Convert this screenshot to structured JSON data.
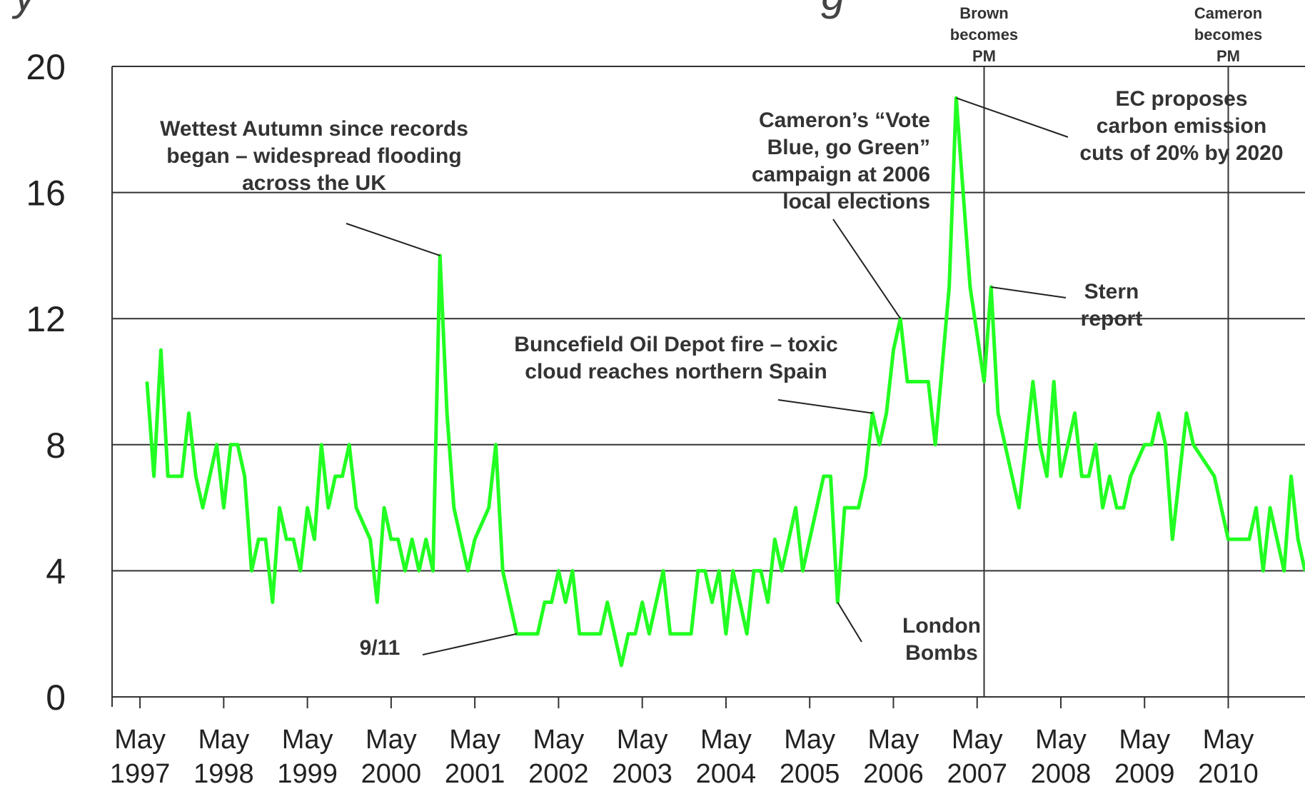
{
  "chart_data": {
    "type": "line",
    "title_fragment": "y                                                                  g",
    "ylim": [
      0,
      20
    ],
    "yticks": [
      "0",
      "4",
      "8",
      "12",
      "16",
      "20"
    ],
    "grid": "horizontal",
    "x_tick_labels": [
      {
        "month": "May",
        "year": "1997"
      },
      {
        "month": "May",
        "year": "1998"
      },
      {
        "month": "May",
        "year": "1999"
      },
      {
        "month": "May",
        "year": "2000"
      },
      {
        "month": "May",
        "year": "2001"
      },
      {
        "month": "May",
        "year": "2002"
      },
      {
        "month": "May",
        "year": "2003"
      },
      {
        "month": "May",
        "year": "2004"
      },
      {
        "month": "May",
        "year": "2005"
      },
      {
        "month": "May",
        "year": "2006"
      },
      {
        "month": "May",
        "year": "2007"
      },
      {
        "month": "May",
        "year": "2008"
      },
      {
        "month": "May",
        "year": "2009"
      },
      {
        "month": "May",
        "year": "2010"
      }
    ],
    "series": [
      {
        "color": "#22ff22",
        "points": [
          [
            "1997-06",
            10
          ],
          [
            "1997-07",
            7
          ],
          [
            "1997-08",
            11
          ],
          [
            "1997-09",
            7
          ],
          [
            "1997-10",
            7
          ],
          [
            "1997-11",
            7
          ],
          [
            "1997-12",
            9
          ],
          [
            "1998-01",
            7
          ],
          [
            "1998-02",
            6
          ],
          [
            "1998-03",
            7
          ],
          [
            "1998-04",
            8
          ],
          [
            "1998-05",
            6
          ],
          [
            "1998-06",
            8
          ],
          [
            "1998-07",
            8
          ],
          [
            "1998-08",
            7
          ],
          [
            "1998-09",
            4
          ],
          [
            "1998-10",
            5
          ],
          [
            "1998-11",
            5
          ],
          [
            "1998-12",
            3
          ],
          [
            "1999-01",
            6
          ],
          [
            "1999-02",
            5
          ],
          [
            "1999-03",
            5
          ],
          [
            "1999-04",
            4
          ],
          [
            "1999-05",
            6
          ],
          [
            "1999-06",
            5
          ],
          [
            "1999-07",
            8
          ],
          [
            "1999-08",
            6
          ],
          [
            "1999-09",
            7
          ],
          [
            "1999-10",
            7
          ],
          [
            "1999-11",
            8
          ],
          [
            "1999-12",
            6
          ],
          [
            "2000-02",
            5
          ],
          [
            "2000-03",
            3
          ],
          [
            "2000-04",
            6
          ],
          [
            "2000-05",
            5
          ],
          [
            "2000-06",
            5
          ],
          [
            "2000-07",
            4
          ],
          [
            "2000-08",
            5
          ],
          [
            "2000-09",
            4
          ],
          [
            "2000-10",
            5
          ],
          [
            "2000-11",
            4
          ],
          [
            "2000-12",
            14
          ],
          [
            "2001-01",
            9
          ],
          [
            "2001-02",
            6
          ],
          [
            "2001-03",
            5
          ],
          [
            "2001-04",
            4
          ],
          [
            "2001-05",
            5
          ],
          [
            "2001-07",
            6
          ],
          [
            "2001-08",
            8
          ],
          [
            "2001-09",
            4
          ],
          [
            "2001-10",
            3
          ],
          [
            "2001-11",
            2
          ],
          [
            "2002-02",
            2
          ],
          [
            "2002-03",
            3
          ],
          [
            "2002-04",
            3
          ],
          [
            "2002-05",
            4
          ],
          [
            "2002-06",
            3
          ],
          [
            "2002-07",
            4
          ],
          [
            "2002-08",
            2
          ],
          [
            "2002-11",
            2
          ],
          [
            "2002-12",
            3
          ],
          [
            "2003-01",
            2
          ],
          [
            "2003-02",
            1
          ],
          [
            "2003-03",
            2
          ],
          [
            "2003-04",
            2
          ],
          [
            "2003-05",
            3
          ],
          [
            "2003-06",
            2
          ],
          [
            "2003-07",
            3
          ],
          [
            "2003-08",
            4
          ],
          [
            "2003-09",
            2
          ],
          [
            "2003-12",
            2
          ],
          [
            "2004-01",
            4
          ],
          [
            "2004-02",
            4
          ],
          [
            "2004-03",
            3
          ],
          [
            "2004-04",
            4
          ],
          [
            "2004-05",
            2
          ],
          [
            "2004-06",
            4
          ],
          [
            "2004-07",
            3
          ],
          [
            "2004-08",
            2
          ],
          [
            "2004-09",
            4
          ],
          [
            "2004-10",
            4
          ],
          [
            "2004-11",
            3
          ],
          [
            "2004-12",
            5
          ],
          [
            "2005-01",
            4
          ],
          [
            "2005-02",
            5
          ],
          [
            "2005-03",
            6
          ],
          [
            "2005-04",
            4
          ],
          [
            "2005-05",
            5
          ],
          [
            "2005-06",
            6
          ],
          [
            "2005-07",
            7
          ],
          [
            "2005-08",
            7
          ],
          [
            "2005-09",
            3
          ],
          [
            "2005-10",
            6
          ],
          [
            "2005-11",
            6
          ],
          [
            "2005-12",
            6
          ],
          [
            "2006-01",
            7
          ],
          [
            "2006-02",
            9
          ],
          [
            "2006-03",
            8
          ],
          [
            "2006-04",
            9
          ],
          [
            "2006-05",
            11
          ],
          [
            "2006-06",
            12
          ],
          [
            "2006-07",
            10
          ],
          [
            "2006-10",
            10
          ],
          [
            "2006-11",
            8
          ],
          [
            "2007-01",
            13
          ],
          [
            "2007-02",
            19
          ],
          [
            "2007-04",
            13
          ],
          [
            "2007-06",
            10
          ],
          [
            "2007-07",
            13
          ],
          [
            "2007-08",
            9
          ],
          [
            "2007-09",
            8
          ],
          [
            "2007-10",
            7
          ],
          [
            "2007-11",
            6
          ],
          [
            "2007-12",
            8
          ],
          [
            "2008-01",
            10
          ],
          [
            "2008-02",
            8
          ],
          [
            "2008-03",
            7
          ],
          [
            "2008-04",
            10
          ],
          [
            "2008-05",
            7
          ],
          [
            "2008-06",
            8
          ],
          [
            "2008-07",
            9
          ],
          [
            "2008-08",
            7
          ],
          [
            "2008-09",
            7
          ],
          [
            "2008-10",
            8
          ],
          [
            "2008-11",
            6
          ],
          [
            "2008-12",
            7
          ],
          [
            "2009-01",
            6
          ],
          [
            "2009-02",
            6
          ],
          [
            "2009-03",
            7
          ],
          [
            "2009-05",
            8
          ],
          [
            "2009-06",
            8
          ],
          [
            "2009-07",
            9
          ],
          [
            "2009-08",
            8
          ],
          [
            "2009-09",
            5
          ],
          [
            "2009-11",
            9
          ],
          [
            "2009-12",
            8
          ],
          [
            "2010-03",
            7
          ],
          [
            "2010-04",
            6
          ],
          [
            "2010-05",
            5
          ],
          [
            "2010-08",
            5
          ],
          [
            "2010-09",
            6
          ],
          [
            "2010-10",
            4
          ],
          [
            "2010-11",
            6
          ],
          [
            "2010-12",
            5
          ],
          [
            "2011-01",
            4
          ],
          [
            "2011-02",
            7
          ],
          [
            "2011-03",
            5
          ],
          [
            "2011-04",
            4
          ]
        ]
      }
    ],
    "events": [
      {
        "date": "2007-06",
        "lines": [
          "Brown",
          "becomes",
          "PM"
        ]
      },
      {
        "date": "2010-05",
        "lines": [
          "Cameron",
          "becomes",
          "PM"
        ]
      }
    ],
    "annotations": [
      {
        "lines": [
          "Wettest Autumn since records",
          "began – widespread flooding",
          "across the UK"
        ],
        "point": [
          "2000-12",
          14
        ]
      },
      {
        "lines": [
          "9/11"
        ],
        "point": [
          "2001-11",
          2
        ]
      },
      {
        "lines": [
          "Buncefield Oil Depot fire – toxic",
          "cloud reaches northern Spain"
        ],
        "point": [
          "2006-02",
          9
        ]
      },
      {
        "lines": [
          "Cameron’s “Vote",
          "Blue, go Green”",
          "campaign at 2006",
          "local elections"
        ],
        "point": [
          "2006-06",
          12
        ]
      },
      {
        "lines": [
          "London",
          "Bombs"
        ],
        "point": [
          "2005-09",
          3
        ]
      },
      {
        "lines": [
          "EC proposes",
          "carbon emission",
          "cuts of 20% by 2020"
        ],
        "point": [
          "2007-02",
          19
        ]
      },
      {
        "lines": [
          "Stern",
          "report"
        ],
        "point": [
          "2007-07",
          13
        ]
      }
    ]
  }
}
